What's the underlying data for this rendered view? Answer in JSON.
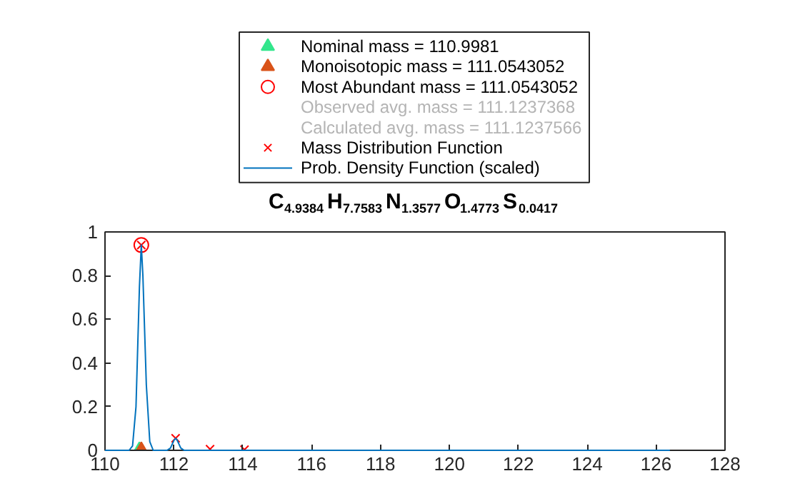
{
  "chart_data": {
    "type": "line",
    "title": "C$_{4.9384}$H$_{7.7583}$N$_{1.3577}$O$_{1.4773}$S$_{0.0417}$",
    "xlim": [
      110,
      128
    ],
    "ylim": [
      0,
      1
    ],
    "xticks": [
      110,
      112,
      114,
      116,
      118,
      120,
      122,
      124,
      126,
      128
    ],
    "yticks": [
      0,
      0.2,
      0.4,
      0.6,
      0.8,
      1
    ],
    "grid": false,
    "legend": "top",
    "series": [
      {
        "name": "Nominal mass = 110.9981",
        "type": "scatter",
        "marker": "triangle",
        "color": "#33e68c",
        "x": [
          110.9981
        ],
        "values": [
          0
        ]
      },
      {
        "name": "Monoisotopic mass = 111.0543052",
        "type": "scatter",
        "marker": "triangle",
        "color": "#d95319",
        "x": [
          111.0543052
        ],
        "values": [
          0
        ]
      },
      {
        "name": "Most Abundant mass = 111.0543052",
        "type": "scatter",
        "marker": "circle",
        "color": "#ff0000",
        "x": [
          111.0543052
        ],
        "values": [
          0.94
        ]
      },
      {
        "name": "Observed avg. mass = 111.1237368",
        "type": "scatter",
        "marker": "none",
        "color": "#b4b4b4"
      },
      {
        "name": "Calculated avg. mass = 111.1237566",
        "type": "scatter",
        "marker": "none",
        "color": "#b4b4b4"
      },
      {
        "name": "Mass Distribution Function",
        "type": "scatter",
        "marker": "cross",
        "color": "#ff0000",
        "x": [
          111.0543,
          112.05,
          113.05,
          114.05
        ],
        "values": [
          0.94,
          0.055,
          0.005,
          0.003
        ]
      },
      {
        "name": "Prob. Density Function (scaled)",
        "type": "line",
        "marker": "none",
        "color": "#0072bd",
        "x": [
          110.0,
          110.7,
          110.8,
          110.9,
          111.0,
          111.054,
          111.1,
          111.2,
          111.3,
          111.4,
          111.8,
          111.9,
          112.0,
          112.05,
          112.1,
          112.2,
          112.3,
          126.4
        ],
        "values": [
          0,
          0,
          0.02,
          0.2,
          0.75,
          0.94,
          0.8,
          0.3,
          0.04,
          0,
          0,
          0.01,
          0.045,
          0.055,
          0.045,
          0.01,
          0,
          0
        ]
      }
    ]
  }
}
